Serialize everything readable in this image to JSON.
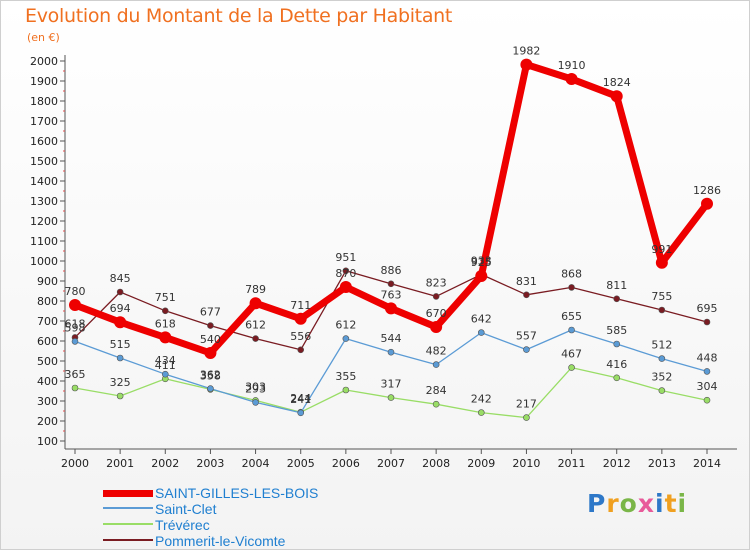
{
  "chart_data": {
    "type": "line",
    "title": "Evolution du Montant de la Dette par Habitant",
    "unit": "(en €)",
    "xlabel": "",
    "ylabel": "",
    "x": [
      "2000",
      "2001",
      "2002",
      "2003",
      "2004",
      "2005",
      "2006",
      "2007",
      "2008",
      "2009",
      "2010",
      "2011",
      "2012",
      "2013",
      "2014"
    ],
    "ylim": [
      100,
      2000
    ],
    "yticks": [
      100,
      200,
      300,
      400,
      500,
      600,
      700,
      800,
      900,
      1000,
      1100,
      1200,
      1300,
      1400,
      1500,
      1600,
      1700,
      1800,
      1900,
      2000
    ],
    "grid": false,
    "legend_position": "bottom-left",
    "series": [
      {
        "name": "SAINT-GILLES-LES-BOIS",
        "color": "#ee0000",
        "values": [
          780,
          694,
          618,
          540,
          789,
          711,
          870,
          763,
          670,
          925,
          1982,
          1910,
          1824,
          991,
          1286
        ]
      },
      {
        "name": "Saint-Clet",
        "color": "#5b9bd5",
        "values": [
          598,
          515,
          434,
          362,
          293,
          241,
          612,
          544,
          482,
          642,
          557,
          655,
          585,
          512,
          448
        ]
      },
      {
        "name": "Trévérec",
        "color": "#99dd66",
        "values": [
          365,
          325,
          411,
          358,
          303,
          244,
          355,
          317,
          284,
          242,
          217,
          467,
          416,
          352,
          304
        ]
      },
      {
        "name": "Pommerit-le-Vicomte",
        "color": "#7a1c22",
        "values": [
          618,
          845,
          751,
          677,
          612,
          556,
          951,
          886,
          823,
          933,
          831,
          868,
          811,
          755,
          695
        ]
      }
    ]
  },
  "logo": {
    "text": "Proxiti"
  }
}
